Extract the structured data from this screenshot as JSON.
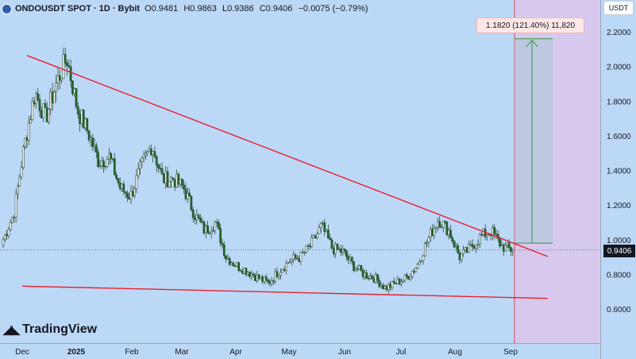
{
  "header": {
    "symbol": "ONDOUSDT SPOT · 1D · Bybit",
    "open": "O0.9481",
    "high": "H0.9863",
    "low": "L0.9386",
    "close": "C0.9406",
    "change": "−0.0075 (−0.79%)"
  },
  "currency_button": "USDT",
  "last_price": "0.9406",
  "measure_label": "1.1820 (121.40%) 11,820",
  "logo_text": "TradingView",
  "colors": {
    "background": "#bcd8f7",
    "trendline": "#e8202a",
    "candle_up": "#f4f6f8",
    "candle_down": "#1f6a2a",
    "measure_fill": "#d9c8ec",
    "measure_arrow": "#2e9a3a"
  },
  "chart_data": {
    "type": "candlestick",
    "x_ticks": [
      "Dec",
      "2025",
      "Feb",
      "Mar",
      "Apr",
      "May",
      "Jun",
      "Jul",
      "Aug",
      "Sep"
    ],
    "y_ticks": [
      "2.2000",
      "2.0000",
      "1.8000",
      "1.6000",
      "1.4000",
      "1.2000",
      "1.0000",
      "0.8000",
      "0.6000"
    ],
    "y_range": [
      0.42,
      2.3
    ],
    "series_close_path": [
      {
        "x": "Dec",
        "y": 1.0
      },
      {
        "x": "Dec",
        "y": 1.15
      },
      {
        "x": "Dec",
        "y": 1.55
      },
      {
        "x": "Dec",
        "y": 1.85
      },
      {
        "x": "Dec",
        "y": 1.7
      },
      {
        "x": "Dec",
        "y": 1.9
      },
      {
        "x": "Dec",
        "y": 2.05
      },
      {
        "x": "2025",
        "y": 1.75
      },
      {
        "x": "2025",
        "y": 1.62
      },
      {
        "x": "2025",
        "y": 1.45
      },
      {
        "x": "2025",
        "y": 1.48
      },
      {
        "x": "2025",
        "y": 1.3
      },
      {
        "x": "2025",
        "y": 1.25
      },
      {
        "x": "Feb",
        "y": 1.42
      },
      {
        "x": "Feb",
        "y": 1.55
      },
      {
        "x": "Feb",
        "y": 1.35
      },
      {
        "x": "Feb",
        "y": 1.35
      },
      {
        "x": "Feb",
        "y": 1.3
      },
      {
        "x": "Mar",
        "y": 1.15
      },
      {
        "x": "Mar",
        "y": 1.05
      },
      {
        "x": "Mar",
        "y": 1.1
      },
      {
        "x": "Mar",
        "y": 0.9
      },
      {
        "x": "Mar",
        "y": 0.85
      },
      {
        "x": "Apr",
        "y": 0.82
      },
      {
        "x": "Apr",
        "y": 0.78
      },
      {
        "x": "Apr",
        "y": 0.75
      },
      {
        "x": "Apr",
        "y": 0.82
      },
      {
        "x": "Apr",
        "y": 0.88
      },
      {
        "x": "May",
        "y": 0.9
      },
      {
        "x": "May",
        "y": 0.97
      },
      {
        "x": "May",
        "y": 1.08
      },
      {
        "x": "May",
        "y": 0.95
      },
      {
        "x": "May",
        "y": 0.93
      },
      {
        "x": "Jun",
        "y": 0.85
      },
      {
        "x": "Jun",
        "y": 0.8
      },
      {
        "x": "Jun",
        "y": 0.78
      },
      {
        "x": "Jun",
        "y": 0.72
      },
      {
        "x": "Jun",
        "y": 0.75
      },
      {
        "x": "Jul",
        "y": 0.78
      },
      {
        "x": "Jul",
        "y": 0.85
      },
      {
        "x": "Jul",
        "y": 1.0
      },
      {
        "x": "Jul",
        "y": 1.12
      },
      {
        "x": "Jul",
        "y": 1.05
      },
      {
        "x": "Aug",
        "y": 0.9
      },
      {
        "x": "Aug",
        "y": 0.95
      },
      {
        "x": "Aug",
        "y": 1.02
      },
      {
        "x": "Aug",
        "y": 1.05
      },
      {
        "x": "Aug",
        "y": 0.96
      },
      {
        "x": "Sep",
        "y": 0.94
      }
    ],
    "current_price": 0.9406,
    "upper_trendline": [
      {
        "x": "Dec",
        "y": 2.1
      },
      {
        "x": "Sep",
        "y": 0.93
      }
    ],
    "lower_trendline": [
      {
        "x": "Dec",
        "y": 0.75
      },
      {
        "x": "Sep",
        "y": 0.67
      }
    ],
    "projection": {
      "from": 0.98,
      "to": 2.16,
      "label": "1.1820 (121.40%) 11,820"
    },
    "grid": false
  }
}
